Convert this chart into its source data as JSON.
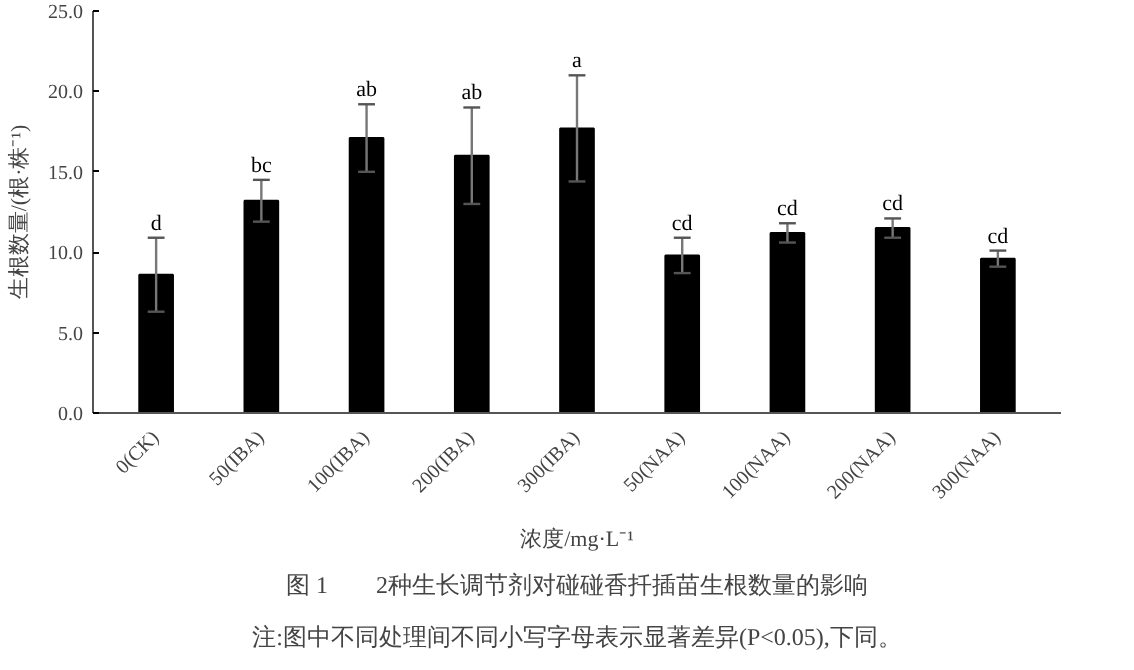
{
  "chart_data": {
    "type": "bar",
    "xlabel": "浓度/mg·L⁻¹",
    "ylabel": "生根数量/(根·株⁻¹)",
    "categories": [
      "0(CK)",
      "50(IBA)",
      "100(IBA)",
      "200(IBA)",
      "300(IBA)",
      "50(NAA)",
      "100(NAA)",
      "200(NAA)",
      "300(NAA)"
    ],
    "values": [
      8.6,
      13.2,
      17.1,
      16.0,
      17.7,
      9.8,
      11.2,
      11.5,
      9.6
    ],
    "errors": [
      2.3,
      1.3,
      2.1,
      3.0,
      3.3,
      1.1,
      0.6,
      0.6,
      0.5
    ],
    "color": "#000000",
    "ylim": [
      0,
      25
    ],
    "yticks": [
      {
        "value": 0,
        "label": "0.0"
      },
      {
        "value": 5,
        "label": "5.0"
      },
      {
        "value": 10,
        "label": "10.0"
      },
      {
        "value": 15,
        "label": "15.0"
      },
      {
        "value": 20,
        "label": "20.0"
      },
      {
        "value": 25,
        "label": "25.0"
      }
    ],
    "grid": false,
    "annotations": [
      {
        "text": "d",
        "x": "0(CK)",
        "y": 10.9
      },
      {
        "text": "bc",
        "x": "50(IBA)",
        "y": 14.5
      },
      {
        "text": "ab",
        "x": "100(IBA)",
        "y": 19.2
      },
      {
        "text": "ab",
        "x": "200(IBA)",
        "y": 19.0
      },
      {
        "text": "a",
        "x": "300(IBA)",
        "y": 21.0
      },
      {
        "text": "cd",
        "x": "50(NAA)",
        "y": 10.9
      },
      {
        "text": "cd",
        "x": "100(NAA)",
        "y": 11.8
      },
      {
        "text": "cd",
        "x": "200(NAA)",
        "y": 12.1
      },
      {
        "text": "cd",
        "x": "300(NAA)",
        "y": 10.1
      },
      "图 1　　2种生长调节剂对碰碰香扦插苗生根数量的影响",
      "注:图中不同处理间不同小写字母表示显著差异(P<0.05),下同。"
    ]
  }
}
